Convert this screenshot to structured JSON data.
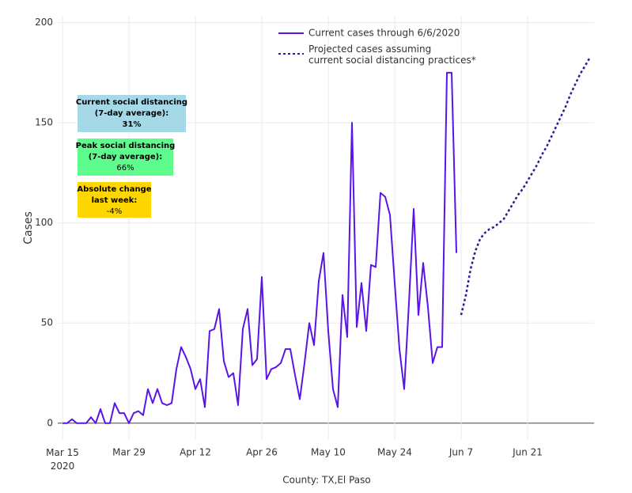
{
  "chart_data": {
    "type": "line",
    "x_label": "County: TX,El Paso",
    "y_label": "Cases",
    "xlim": [
      "2020-03-14",
      "2020-07-05"
    ],
    "ylim": [
      -8,
      203
    ],
    "xticks": [
      {
        "value": "2020-03-15",
        "label": "Mar 15\n2020"
      },
      {
        "value": "2020-03-29",
        "label": "Mar 29"
      },
      {
        "value": "2020-04-12",
        "label": "Apr 12"
      },
      {
        "value": "2020-04-26",
        "label": "Apr 26"
      },
      {
        "value": "2020-05-10",
        "label": "May 10"
      },
      {
        "value": "2020-05-24",
        "label": "May 24"
      },
      {
        "value": "2020-06-07",
        "label": "Jun 7"
      },
      {
        "value": "2020-06-21",
        "label": "Jun 21"
      }
    ],
    "yticks": [
      0,
      50,
      100,
      150,
      200
    ],
    "grid": true,
    "legend": "top",
    "series": [
      {
        "name": "Current cases through 6/6/2020",
        "color": "#5b14e6",
        "dash": "solid",
        "start": "2020-03-15",
        "values": [
          0,
          0,
          2,
          0,
          0,
          0,
          3,
          0,
          7,
          0,
          0,
          10,
          5,
          5,
          0,
          5,
          6,
          4,
          17,
          10,
          17,
          10,
          9,
          10,
          27,
          38,
          33,
          27,
          17,
          22,
          8,
          46,
          47,
          57,
          31,
          23,
          25,
          9,
          47,
          57,
          29,
          32,
          73,
          22,
          27,
          28,
          30,
          37,
          37,
          24,
          12,
          30,
          50,
          39,
          71,
          85,
          46,
          17,
          8,
          64,
          43,
          150,
          48,
          70,
          46,
          79,
          78,
          115,
          113,
          104,
          70,
          37,
          17,
          60,
          107,
          54,
          80,
          58,
          30,
          38,
          38,
          175,
          175,
          85
        ]
      },
      {
        "name": "Projected cases assuming\ncurrent social distancing practices*",
        "color": "#2b1c96",
        "dash": "dotted",
        "start": "2020-06-07",
        "values": [
          54,
          64,
          77,
          86,
          92,
          95,
          97,
          98,
          100,
          102,
          106,
          110,
          114,
          117,
          121,
          125,
          129,
          134,
          138,
          143,
          148,
          153,
          158,
          164,
          169,
          174,
          178,
          182
        ]
      }
    ],
    "annotations": [
      {
        "lines": [
          "Current social distancing",
          "(7-day average):"
        ],
        "value": "31%",
        "color": "#a6d9e8",
        "value_bold": true
      },
      {
        "lines": [
          "Peak social distancing",
          "(7-day average):"
        ],
        "value": "66%",
        "color": "#5efc8d",
        "value_bold": false
      },
      {
        "lines": [
          "Absolute change",
          "last week:"
        ],
        "value": "-4%",
        "color": "#ffd700",
        "value_bold": false
      }
    ]
  }
}
